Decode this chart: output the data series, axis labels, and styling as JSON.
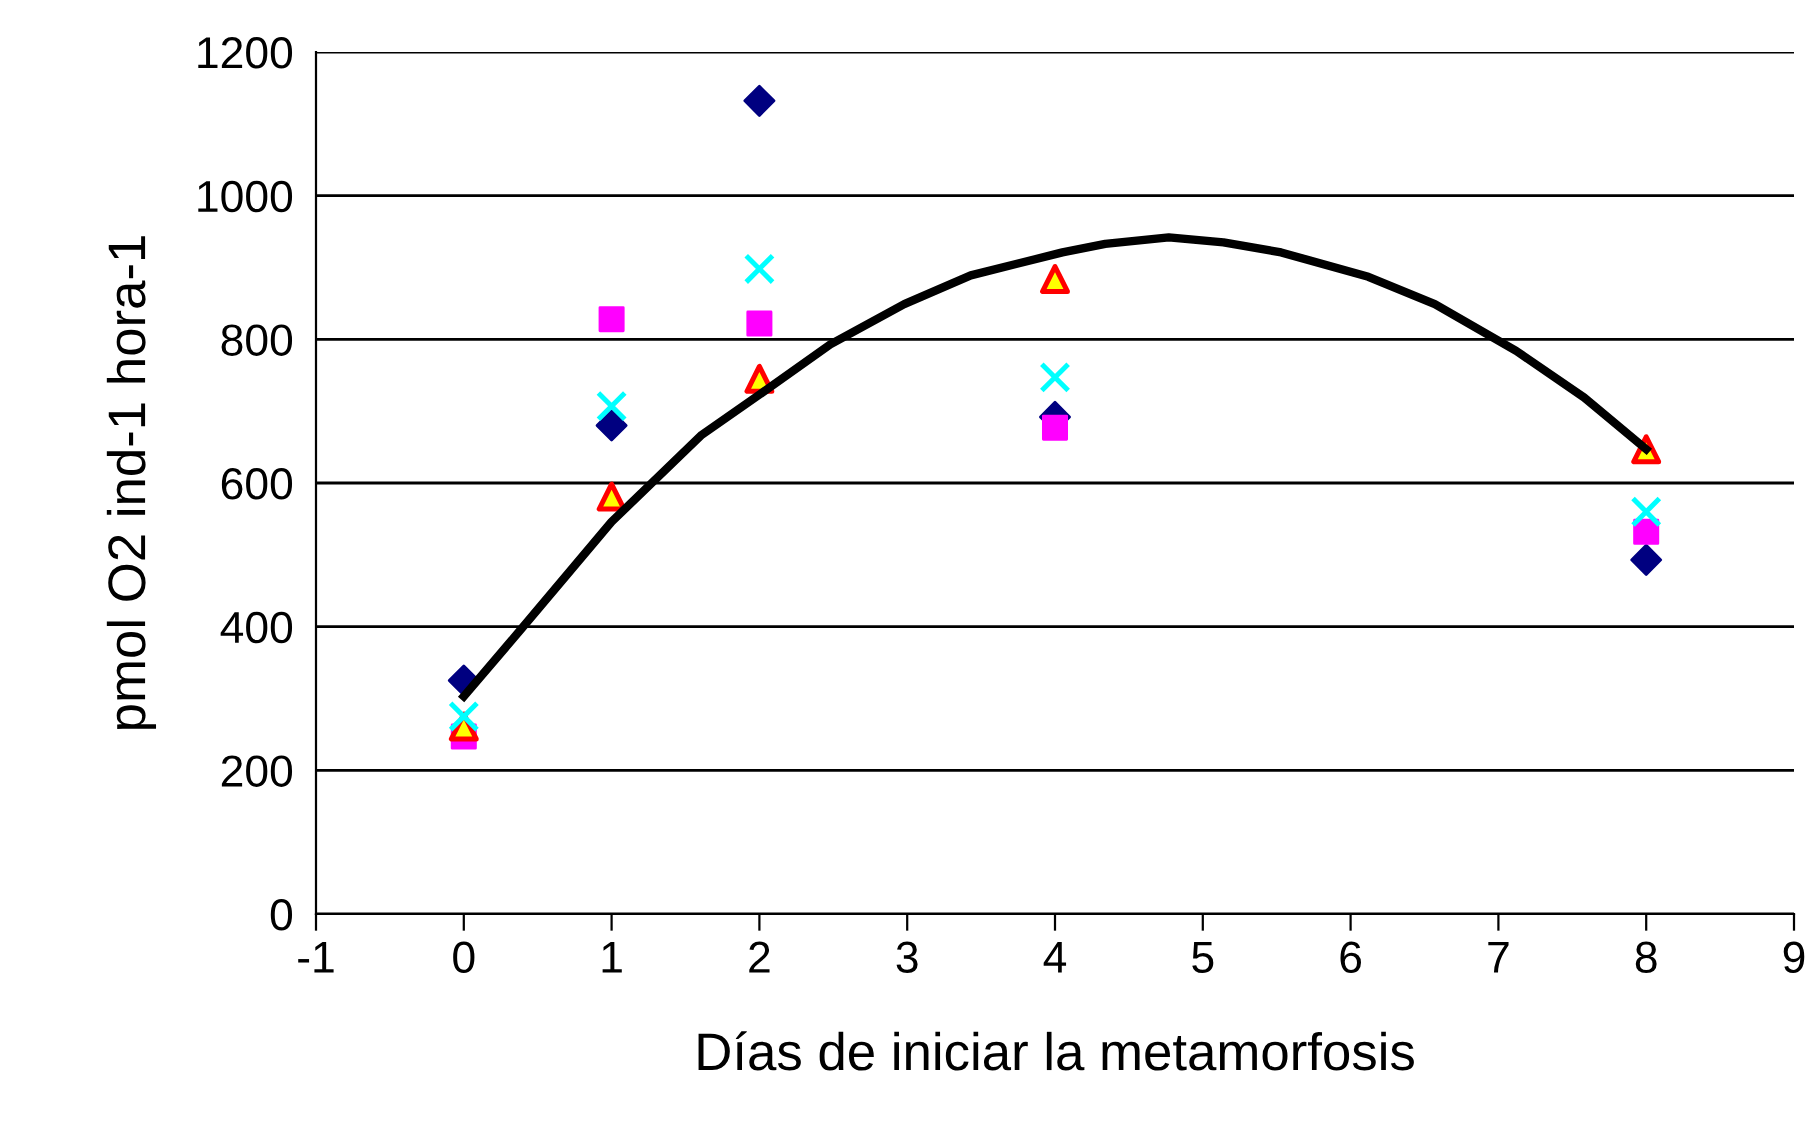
{
  "chart_data": {
    "type": "scatter",
    "xlabel": "Días de iniciar la metamorfosis",
    "ylabel": "pmol O2 ind-1 hora-1",
    "xlim": [
      -1,
      9
    ],
    "xticks": [
      -1,
      0,
      1,
      2,
      3,
      4,
      5,
      6,
      7,
      8,
      9
    ],
    "ylim": [
      0,
      1200
    ],
    "yticks": [
      0,
      200,
      400,
      600,
      800,
      1000,
      1200
    ],
    "grid": "y",
    "legend": false,
    "series": [
      {
        "marker": "diamond",
        "color": "#000080",
        "x": [
          0,
          1,
          2,
          4,
          8
        ],
        "values": [
          325,
          680,
          1132,
          692,
          493
        ]
      },
      {
        "marker": "square",
        "color": "#ff00ff",
        "x": [
          0,
          1,
          2,
          4,
          8
        ],
        "values": [
          247,
          828,
          822,
          677,
          532
        ]
      },
      {
        "marker": "triangle",
        "color": "#ffff00",
        "x": [
          0,
          1,
          2,
          4,
          8
        ],
        "values": [
          261,
          581,
          745,
          884,
          647
        ]
      },
      {
        "marker": "cross",
        "color": "#00ffff",
        "x": [
          0,
          1,
          2,
          4,
          8
        ],
        "values": [
          275,
          707,
          898,
          747,
          560
        ]
      },
      {
        "type": "line",
        "marker": "none",
        "line_style": "solid",
        "color": "#000000",
        "x": [
          0,
          0.39,
          1,
          1.61,
          2,
          2.48,
          2.98,
          3.43,
          4.05,
          4.34,
          4.77,
          5.14,
          5.53,
          6.12,
          6.57,
          7.12,
          7.58,
          8
        ],
        "values": [
          303,
          397,
          546,
          667,
          723,
          793,
          849,
          889,
          921,
          933,
          942,
          935,
          921,
          887,
          849,
          784,
          719,
          647
        ]
      }
    ]
  }
}
